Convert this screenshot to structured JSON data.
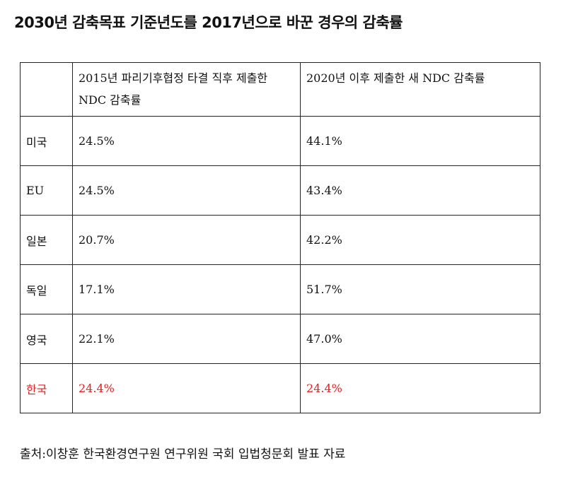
{
  "title": "2030년 감축목표 기준년도를 2017년으로 바꾼 경우의 감축률",
  "table": {
    "headers": [
      "",
      "2015년 파리기후협정 타결 직후 제출한 NDC 감축률",
      "2020년 이후 제출한 새 NDC 감축률"
    ],
    "rows": [
      {
        "country": "미국",
        "ndc2015": "24.5%",
        "ndc2020": "44.1%"
      },
      {
        "country": "EU",
        "ndc2015": "24.5%",
        "ndc2020": "43.4%"
      },
      {
        "country": "일본",
        "ndc2015": "20.7%",
        "ndc2020": "42.2%"
      },
      {
        "country": "독일",
        "ndc2015": "17.1%",
        "ndc2020": "51.7%"
      },
      {
        "country": "영국",
        "ndc2015": "22.1%",
        "ndc2020": "47.0%"
      },
      {
        "country": "한국",
        "ndc2015": "24.4%",
        "ndc2020": "24.4%"
      }
    ],
    "highlight_color": "#e02020"
  },
  "source": "출처:이창훈 한국환경연구원 연구위원 국회 입법청문회 발표 자료"
}
